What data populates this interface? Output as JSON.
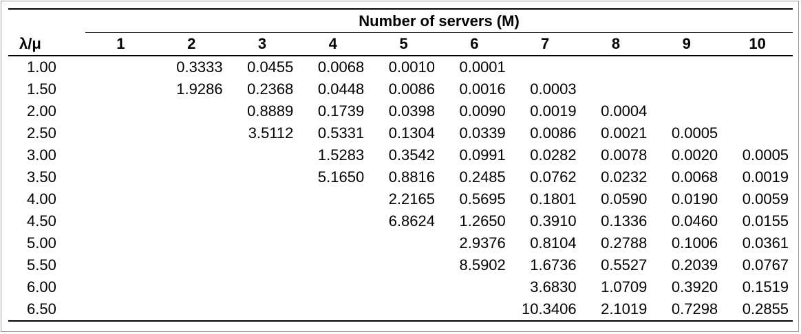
{
  "table": {
    "group_header": "Number of servers (M)",
    "lambda_mu_label": "λ/μ",
    "server_columns": [
      "1",
      "2",
      "3",
      "4",
      "5",
      "6",
      "7",
      "8",
      "9",
      "10"
    ],
    "rows": [
      {
        "lambda_mu": "1.00",
        "values": [
          "",
          "0.3333",
          "0.0455",
          "0.0068",
          "0.0010",
          "0.0001",
          "",
          "",
          "",
          ""
        ]
      },
      {
        "lambda_mu": "1.50",
        "values": [
          "",
          "1.9286",
          "0.2368",
          "0.0448",
          "0.0086",
          "0.0016",
          "0.0003",
          "",
          "",
          ""
        ]
      },
      {
        "lambda_mu": "2.00",
        "values": [
          "",
          "",
          "0.8889",
          "0.1739",
          "0.0398",
          "0.0090",
          "0.0019",
          "0.0004",
          "",
          ""
        ]
      },
      {
        "lambda_mu": "2.50",
        "values": [
          "",
          "",
          "3.5112",
          "0.5331",
          "0.1304",
          "0.0339",
          "0.0086",
          "0.0021",
          "0.0005",
          ""
        ]
      },
      {
        "lambda_mu": "3.00",
        "values": [
          "",
          "",
          "",
          "1.5283",
          "0.3542",
          "0.0991",
          "0.0282",
          "0.0078",
          "0.0020",
          "0.0005"
        ]
      },
      {
        "lambda_mu": "3.50",
        "values": [
          "",
          "",
          "",
          "5.1650",
          "0.8816",
          "0.2485",
          "0.0762",
          "0.0232",
          "0.0068",
          "0.0019"
        ]
      },
      {
        "lambda_mu": "4.00",
        "values": [
          "",
          "",
          "",
          "",
          "2.2165",
          "0.5695",
          "0.1801",
          "0.0590",
          "0.0190",
          "0.0059"
        ]
      },
      {
        "lambda_mu": "4.50",
        "values": [
          "",
          "",
          "",
          "",
          "6.8624",
          "1.2650",
          "0.3910",
          "0.1336",
          "0.0460",
          "0.0155"
        ]
      },
      {
        "lambda_mu": "5.00",
        "values": [
          "",
          "",
          "",
          "",
          "",
          "2.9376",
          "0.8104",
          "0.2788",
          "0.1006",
          "0.0361"
        ]
      },
      {
        "lambda_mu": "5.50",
        "values": [
          "",
          "",
          "",
          "",
          "",
          "8.5902",
          "1.6736",
          "0.5527",
          "0.2039",
          "0.0767"
        ]
      },
      {
        "lambda_mu": "6.00",
        "values": [
          "",
          "",
          "",
          "",
          "",
          "",
          "3.6830",
          "1.0709",
          "0.3920",
          "0.1519"
        ]
      },
      {
        "lambda_mu": "6.50",
        "values": [
          "",
          "",
          "",
          "",
          "",
          "",
          "10.3406",
          "2.1019",
          "0.7298",
          "0.2855"
        ]
      }
    ]
  }
}
